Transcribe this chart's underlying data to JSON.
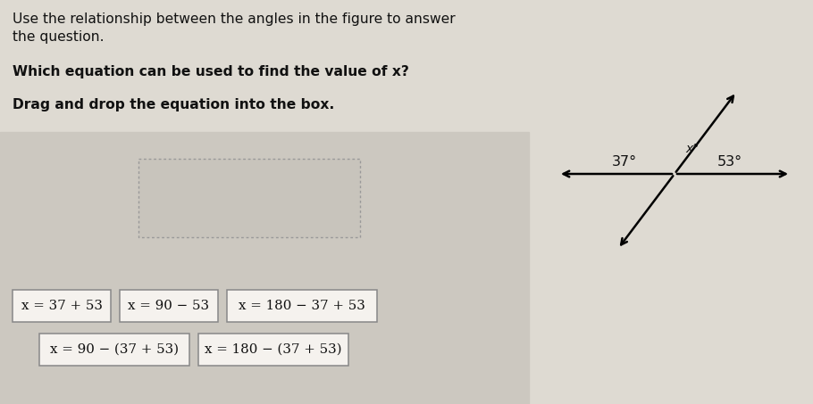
{
  "bg_color": "#dedad2",
  "panel_color": "#ccc8c0",
  "title_line1": "Use the relationship between the angles in the figure to answer",
  "title_line2": "the question.",
  "question": "Which equation can be used to find the value of x?",
  "instruction": "Drag and drop the equation into the box.",
  "eq_row1": [
    "x = 37 + 53",
    "x = 90 − 53",
    "x = 180 − 37 + 53"
  ],
  "eq_row2": [
    "x = 90 − (37 + 53)",
    "x = 180 − (37 + 53)"
  ],
  "angle_37": "37°",
  "angle_53": "53°",
  "angle_x": "x°",
  "text_color": "#111111",
  "box_bg": "#f5f2ee",
  "dashed_box_bg": "#cac6be",
  "fig_bg": "#e8e4dc"
}
